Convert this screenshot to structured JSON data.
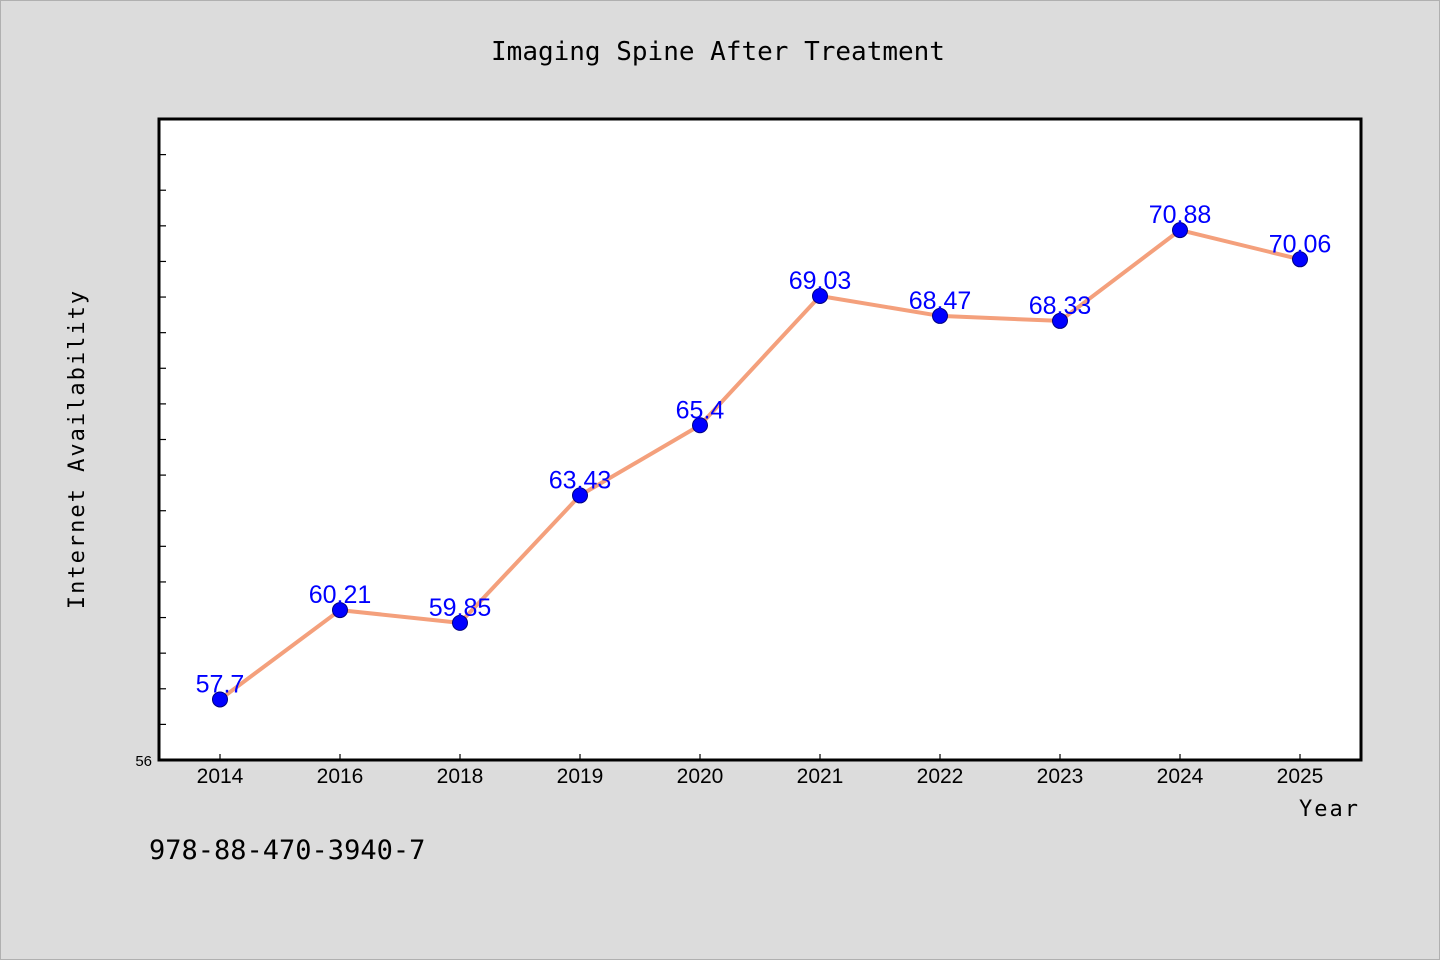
{
  "chart_data": {
    "type": "line",
    "title": "Imaging Spine After Treatment",
    "xlabel": "Year",
    "ylabel": "Internet Availability",
    "categories": [
      "2014",
      "2016",
      "2018",
      "2019",
      "2020",
      "2021",
      "2022",
      "2023",
      "2024",
      "2025"
    ],
    "series": [
      {
        "values": [
          57.7,
          60.21,
          59.85,
          63.43,
          65.4,
          69.03,
          68.47,
          68.33,
          70.88,
          70.06
        ],
        "labels": [
          "57.7",
          "60.21",
          "59.85",
          "63.43",
          "65.4",
          "69.03",
          "68.47",
          "68.33",
          "70.88",
          "70.06"
        ]
      }
    ],
    "ylim": [
      56,
      74
    ],
    "y_tick_labels": [
      "56"
    ],
    "grid": false,
    "colors": {
      "line": "#f4a07c",
      "marker": "#0000ff",
      "data_label": "#0000ff"
    }
  },
  "footer": {
    "isbn": "978-88-470-3940-7"
  }
}
